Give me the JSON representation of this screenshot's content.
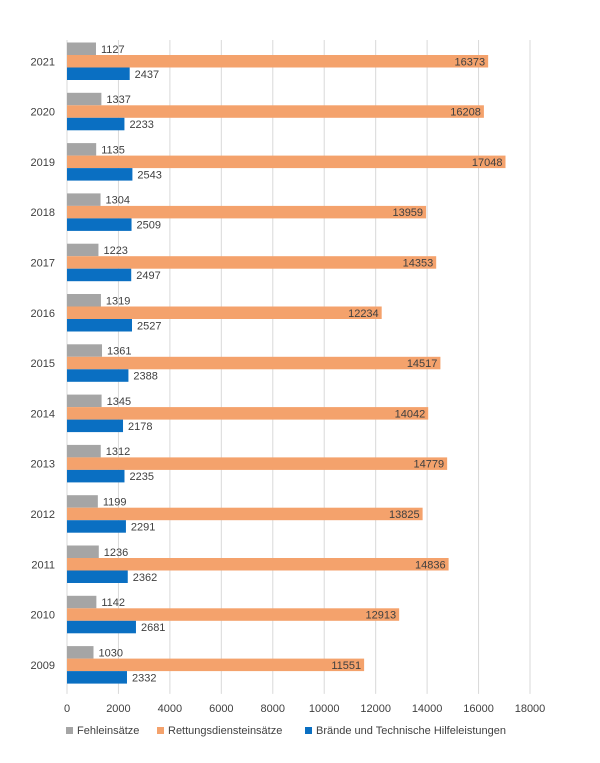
{
  "chart_data": {
    "type": "bar",
    "orientation": "horizontal",
    "categories": [
      "2009",
      "2010",
      "2011",
      "2012",
      "2013",
      "2014",
      "2015",
      "2016",
      "2017",
      "2018",
      "2019",
      "2020",
      "2021"
    ],
    "series": [
      {
        "name": "Fehleinsätze",
        "color": "#a5a5a5",
        "values": [
          1030,
          1142,
          1236,
          1199,
          1312,
          1345,
          1361,
          1319,
          1223,
          1304,
          1135,
          1337,
          1127
        ]
      },
      {
        "name": "Rettungsdiensteinsätze",
        "color": "#f4a26c",
        "values": [
          11551,
          12913,
          14836,
          13825,
          14779,
          14042,
          14517,
          12234,
          14353,
          13959,
          17048,
          16208,
          16373
        ]
      },
      {
        "name": "Brände und Technische Hilfeleistungen",
        "color": "#0a6fc2",
        "values": [
          2332,
          2681,
          2362,
          2291,
          2235,
          2178,
          2388,
          2527,
          2497,
          2509,
          2543,
          2233,
          2437
        ]
      }
    ],
    "xlim": [
      0,
      18000
    ],
    "x_ticks": [
      0,
      2000,
      4000,
      6000,
      8000,
      10000,
      12000,
      14000,
      16000,
      18000
    ],
    "title": "",
    "xlabel": "",
    "ylabel": "",
    "grid": true,
    "legend": "bottom"
  }
}
